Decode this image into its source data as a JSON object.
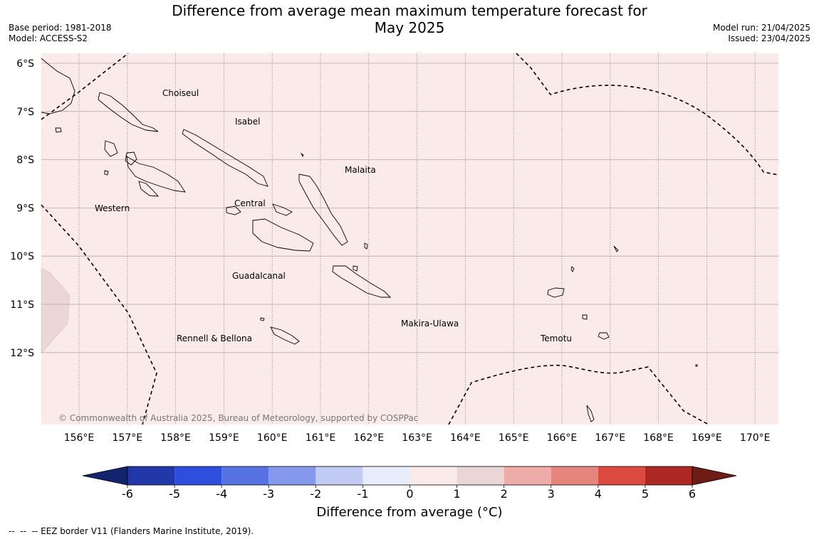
{
  "header": {
    "title_line1": "Difference from average mean maximum temperature forecast for",
    "title_line2": "May 2025",
    "base_period": "Base period: 1981-2018",
    "model": "Model: ACCESS-S2",
    "model_run": "Model run: 21/04/2025",
    "issued": "Issued: 23/04/2025"
  },
  "map": {
    "lon_labels": [
      "156°E",
      "157°E",
      "158°E",
      "159°E",
      "160°E",
      "161°E",
      "162°E",
      "163°E",
      "164°E",
      "165°E",
      "166°E",
      "167°E",
      "168°E",
      "169°E",
      "170°E"
    ],
    "lat_labels": [
      "6°S",
      "7°S",
      "8°S",
      "9°S",
      "10°S",
      "11°S",
      "12°S"
    ],
    "province_labels": [
      "Choiseul",
      "Isabel",
      "Malaita",
      "Western",
      "Central",
      "Guadalcanal",
      "Makira-Ulawa",
      "Rennell & Bellona",
      "Temotu"
    ],
    "copyright": "© Commonwealth of Australia 2025, Bureau of Meteorology, supported by COSPPac",
    "dominant_category": "0 to 1 °C",
    "dominant_color": "#fbeaea",
    "secondary_category": "1 to 2 °C",
    "secondary_color": "#ead6d4"
  },
  "colorbar": {
    "ticks": [
      "-6",
      "-5",
      "-4",
      "-3",
      "-2",
      "-1",
      "0",
      "1",
      "2",
      "3",
      "4",
      "5",
      "6"
    ],
    "colors": [
      "#2238a8",
      "#2e4fde",
      "#5672e3",
      "#8599ec",
      "#c1cbf3",
      "#e8ecfb",
      "#fbeaea",
      "#ead6d4",
      "#eeaca9",
      "#e6857e",
      "#dc4a3f",
      "#ad2823"
    ],
    "under_color": "#13246e",
    "over_color": "#6e1c16",
    "label": "Difference from average ($^\\circ$C)",
    "label_display": "Difference from average (°C)"
  },
  "footnote": {
    "dash": "--  --  --",
    "text": "EEZ border V11 (Flanders Marine Institute, 2019)."
  }
}
